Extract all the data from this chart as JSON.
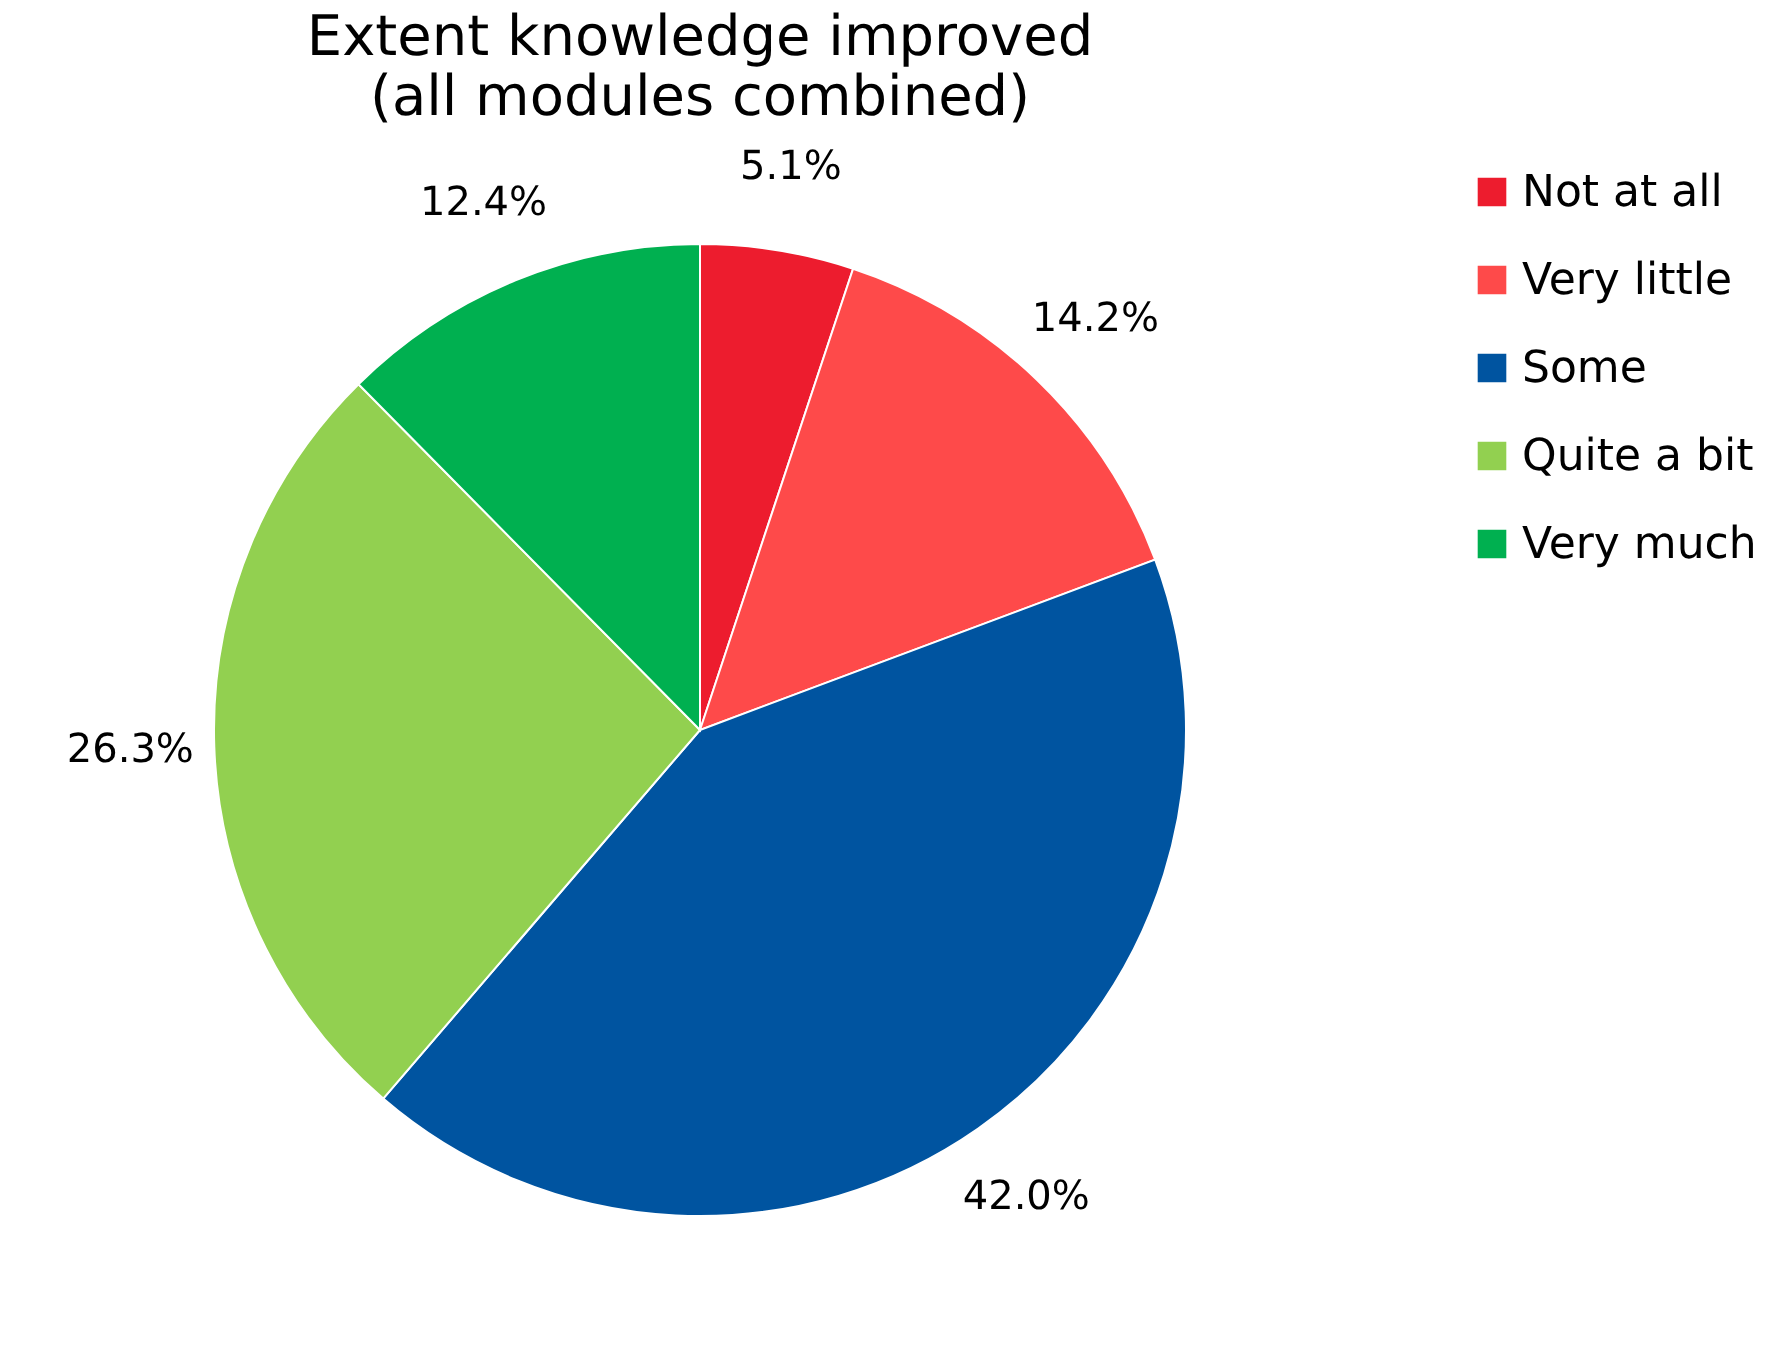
{
  "chart_data": {
    "type": "pie",
    "title": "Extent knowledge improved\n(all modules combined)",
    "categories": [
      "Not at all",
      "Very little",
      "Some",
      "Quite a bit",
      "Very much"
    ],
    "values": [
      5.1,
      14.2,
      42.0,
      26.3,
      12.4
    ],
    "colors": [
      "#ed1c2e",
      "#fe4a4a",
      "#0054a0",
      "#92d050",
      "#00b050"
    ],
    "value_labels": [
      "5.1%",
      "14.2%",
      "42.0%",
      "26.3%",
      "12.4%"
    ],
    "legend": "right"
  }
}
